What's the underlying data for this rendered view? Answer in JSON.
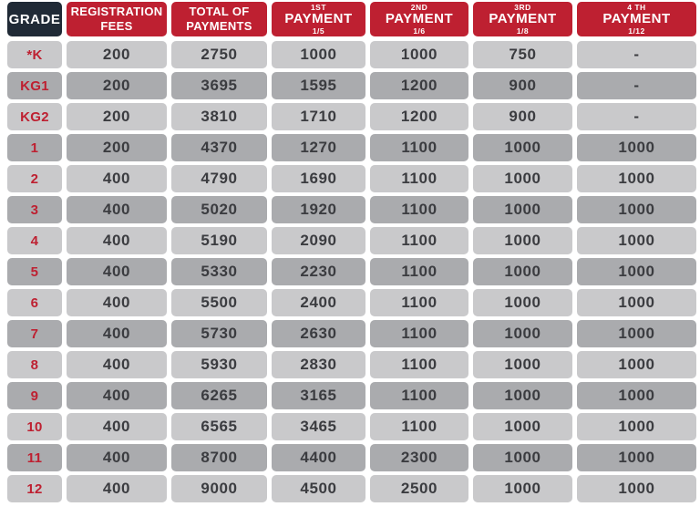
{
  "colors": {
    "header_navy": "#202a36",
    "header_red": "#be2031",
    "row_light": "#c9c9cb",
    "row_dark": "#aaabae",
    "grade_text": "#be2031",
    "value_text": "#3b3c40"
  },
  "chart_data": {
    "type": "table",
    "title": "",
    "columns": [
      {
        "key": "grade",
        "label": "GRADE"
      },
      {
        "key": "fees",
        "line1": "REGISTRATION",
        "line2": "FEES"
      },
      {
        "key": "total",
        "line1": "TOTAL OF",
        "line2": "PAYMENTS"
      },
      {
        "key": "p1",
        "ordinal": "1ST",
        "label": "PAYMENT",
        "fraction": "1/5"
      },
      {
        "key": "p2",
        "ordinal": "2ND",
        "label": "PAYMENT",
        "fraction": "1/6"
      },
      {
        "key": "p3",
        "ordinal": "3RD",
        "label": "PAYMENT",
        "fraction": "1/8"
      },
      {
        "key": "p4",
        "ordinal": "4 TH",
        "label": "PAYMENT",
        "fraction": "1/12"
      }
    ],
    "rows": [
      {
        "grade": "*K",
        "fees": "200",
        "total": "2750",
        "p1": "1000",
        "p2": "1000",
        "p3": "750",
        "p4": "-"
      },
      {
        "grade": "KG1",
        "fees": "200",
        "total": "3695",
        "p1": "1595",
        "p2": "1200",
        "p3": "900",
        "p4": "-"
      },
      {
        "grade": "KG2",
        "fees": "200",
        "total": "3810",
        "p1": "1710",
        "p2": "1200",
        "p3": "900",
        "p4": "-"
      },
      {
        "grade": "1",
        "fees": "200",
        "total": "4370",
        "p1": "1270",
        "p2": "1100",
        "p3": "1000",
        "p4": "1000"
      },
      {
        "grade": "2",
        "fees": "400",
        "total": "4790",
        "p1": "1690",
        "p2": "1100",
        "p3": "1000",
        "p4": "1000"
      },
      {
        "grade": "3",
        "fees": "400",
        "total": "5020",
        "p1": "1920",
        "p2": "1100",
        "p3": "1000",
        "p4": "1000"
      },
      {
        "grade": "4",
        "fees": "400",
        "total": "5190",
        "p1": "2090",
        "p2": "1100",
        "p3": "1000",
        "p4": "1000"
      },
      {
        "grade": "5",
        "fees": "400",
        "total": "5330",
        "p1": "2230",
        "p2": "1100",
        "p3": "1000",
        "p4": "1000"
      },
      {
        "grade": "6",
        "fees": "400",
        "total": "5500",
        "p1": "2400",
        "p2": "1100",
        "p3": "1000",
        "p4": "1000"
      },
      {
        "grade": "7",
        "fees": "400",
        "total": "5730",
        "p1": "2630",
        "p2": "1100",
        "p3": "1000",
        "p4": "1000"
      },
      {
        "grade": "8",
        "fees": "400",
        "total": "5930",
        "p1": "2830",
        "p2": "1100",
        "p3": "1000",
        "p4": "1000"
      },
      {
        "grade": "9",
        "fees": "400",
        "total": "6265",
        "p1": "3165",
        "p2": "1100",
        "p3": "1000",
        "p4": "1000"
      },
      {
        "grade": "10",
        "fees": "400",
        "total": "6565",
        "p1": "3465",
        "p2": "1100",
        "p3": "1000",
        "p4": "1000"
      },
      {
        "grade": "11",
        "fees": "400",
        "total": "8700",
        "p1": "4400",
        "p2": "2300",
        "p3": "1000",
        "p4": "1000"
      },
      {
        "grade": "12",
        "fees": "400",
        "total": "9000",
        "p1": "4500",
        "p2": "2500",
        "p3": "1000",
        "p4": "1000"
      }
    ]
  }
}
